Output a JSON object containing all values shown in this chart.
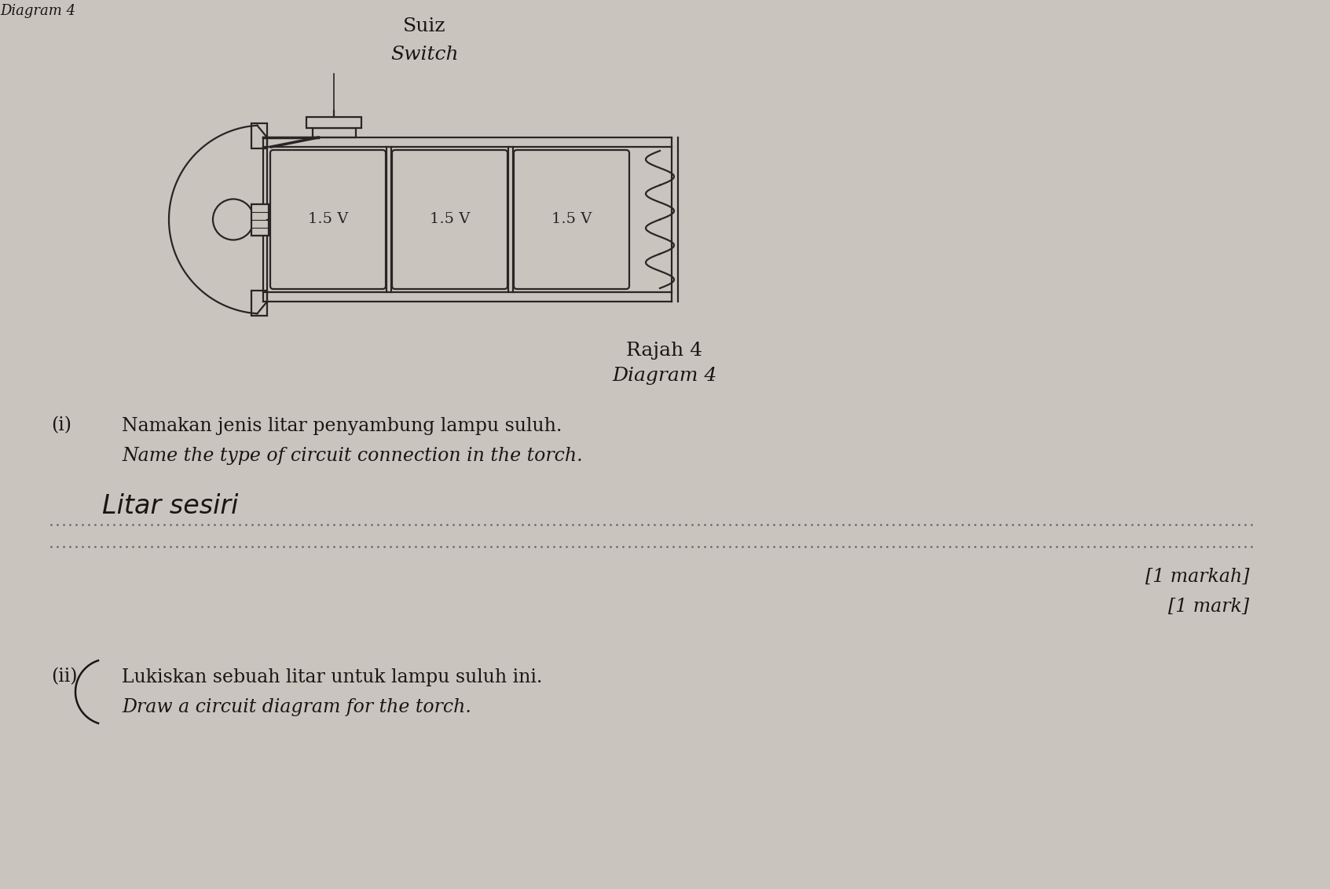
{
  "bg_color": "#c9c5be",
  "title_suiz": "Suiz",
  "title_switch": "Switch",
  "rajah_text": "Rajah 4",
  "diagram_text": "Diagram 4",
  "q_i_label": "(i)",
  "q_i_malay": "Namakan jenis litar penyambung lampu suluh.",
  "q_i_english": "Name the type of circuit connection in the torch.",
  "answer_text": "Litar sesiri",
  "mark_malay": "[1 markah]",
  "mark_english": "[1 mark]",
  "q_ii_label": "(ii)",
  "q_ii_malay": "Lukiskan sebuah litar untuk lampu suluh ini.",
  "q_ii_english": "Draw a circuit diagram for the torch.",
  "battery_labels": [
    "1.5 V",
    "1.5 V",
    "1.5 V"
  ],
  "top_cut_text": "Diagram 4",
  "draw_color": "#2a2525"
}
